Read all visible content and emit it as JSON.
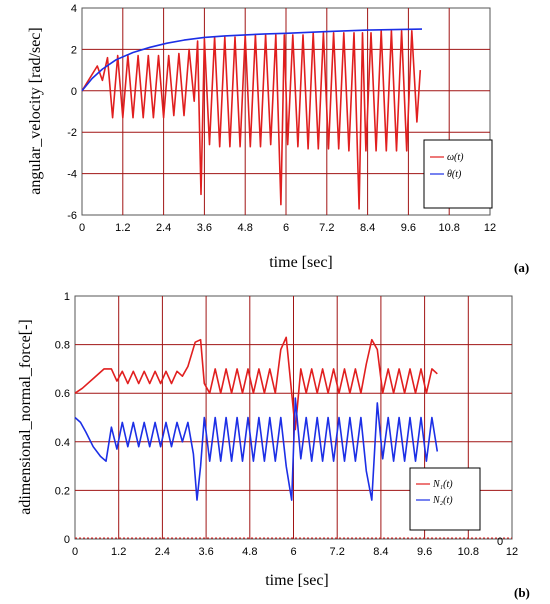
{
  "colors": {
    "red": "#e11f1f",
    "blue": "#1c2fe6",
    "grid": "#a11414",
    "frame": "#555555"
  },
  "chart_data": [
    {
      "type": "line",
      "panel_tag": "(a)",
      "xlabel": "time [sec]",
      "ylabel": "angular_velocity [rad/sec]",
      "xlim": [
        0,
        12
      ],
      "ylim": [
        -6,
        4
      ],
      "xticks": [
        "0",
        "1.2",
        "2.4",
        "3.6",
        "4.8",
        "6",
        "7.2",
        "8.4",
        "9.6",
        "10.8",
        "12"
      ],
      "yticks": [
        "4",
        "2",
        "0",
        "-2",
        "-4",
        "-6"
      ],
      "grid": true,
      "legend_position": "right",
      "series": [
        {
          "name": "ω(t)",
          "color": "#e11f1f",
          "x": [
            0,
            0.45,
            0.6,
            0.75,
            0.9,
            1.05,
            1.2,
            1.35,
            1.5,
            1.65,
            1.8,
            1.95,
            2.1,
            2.25,
            2.4,
            2.55,
            2.7,
            2.85,
            3.0,
            3.15,
            3.3,
            3.4,
            3.5,
            3.6,
            3.75,
            3.9,
            4.05,
            4.2,
            4.35,
            4.5,
            4.65,
            4.8,
            4.95,
            5.1,
            5.25,
            5.4,
            5.55,
            5.7,
            5.85,
            5.95,
            6.05,
            6.2,
            6.35,
            6.5,
            6.65,
            6.8,
            6.95,
            7.1,
            7.25,
            7.4,
            7.55,
            7.7,
            7.85,
            8.0,
            8.15,
            8.25,
            8.35,
            8.5,
            8.65,
            8.8,
            8.95,
            9.1,
            9.25,
            9.4,
            9.55,
            9.7,
            9.85,
            9.95
          ],
          "y": [
            0,
            1.2,
            0.5,
            1.6,
            -1.3,
            1.7,
            -1.3,
            1.7,
            -1.3,
            1.7,
            -1.3,
            1.7,
            -1.3,
            1.7,
            -1.3,
            1.7,
            -1.2,
            1.8,
            -1.2,
            2.0,
            -0.5,
            2.4,
            -5.0,
            2.5,
            -2.6,
            2.6,
            -2.7,
            2.6,
            -2.7,
            2.6,
            -2.7,
            2.7,
            -2.7,
            2.7,
            -2.7,
            2.7,
            -2.6,
            2.7,
            -5.5,
            2.7,
            -2.6,
            2.7,
            -2.7,
            2.7,
            -2.8,
            2.8,
            -2.8,
            2.8,
            -2.8,
            2.8,
            -2.8,
            2.8,
            -2.9,
            2.8,
            -5.7,
            2.8,
            -2.9,
            2.8,
            -2.9,
            2.9,
            -2.9,
            2.9,
            -2.9,
            2.9,
            -2.9,
            2.9,
            -1.5,
            1.0
          ]
        },
        {
          "name": "θ(t)",
          "color": "#1c2fe6",
          "x": [
            0,
            0.3,
            0.6,
            1.0,
            1.5,
            2.0,
            2.5,
            3.0,
            3.6,
            4.2,
            4.8,
            5.4,
            6.0,
            6.6,
            7.2,
            7.8,
            8.4,
            9.0,
            9.6,
            10.0
          ],
          "y": [
            0,
            0.6,
            1.05,
            1.5,
            1.85,
            2.1,
            2.3,
            2.45,
            2.58,
            2.65,
            2.7,
            2.75,
            2.78,
            2.82,
            2.86,
            2.9,
            2.93,
            2.95,
            2.97,
            2.98
          ]
        }
      ]
    },
    {
      "type": "line",
      "panel_tag": "(b)",
      "xlabel": "time [sec]",
      "ylabel": "adimensional_normal_force[-]",
      "xlim": [
        0,
        12
      ],
      "ylim": [
        0,
        1
      ],
      "xticks": [
        "0",
        "1.2",
        "2.4",
        "3.6",
        "4.8",
        "6",
        "7.2",
        "8.4",
        "9.6",
        "10.8",
        "12"
      ],
      "yticks": [
        "1",
        "0.8",
        "0.6",
        "0.4",
        "0.2",
        "0"
      ],
      "x_end_annotation": "0",
      "grid": true,
      "legend_position": "right",
      "series": [
        {
          "name": "N₁(t)",
          "color": "#e11f1f",
          "x": [
            0,
            0.2,
            0.5,
            0.8,
            1.0,
            1.15,
            1.3,
            1.45,
            1.6,
            1.75,
            1.9,
            2.05,
            2.2,
            2.35,
            2.5,
            2.65,
            2.8,
            2.95,
            3.1,
            3.3,
            3.45,
            3.55,
            3.7,
            3.85,
            4.0,
            4.15,
            4.3,
            4.45,
            4.6,
            4.75,
            4.9,
            5.05,
            5.2,
            5.35,
            5.5,
            5.65,
            5.8,
            5.95,
            6.05,
            6.2,
            6.35,
            6.5,
            6.65,
            6.8,
            6.95,
            7.1,
            7.25,
            7.4,
            7.55,
            7.7,
            7.85,
            8.0,
            8.15,
            8.3,
            8.45,
            8.6,
            8.75,
            8.9,
            9.05,
            9.2,
            9.35,
            9.5,
            9.65,
            9.8,
            9.95
          ],
          "y": [
            0.6,
            0.62,
            0.66,
            0.7,
            0.7,
            0.65,
            0.69,
            0.64,
            0.69,
            0.64,
            0.69,
            0.64,
            0.69,
            0.64,
            0.69,
            0.64,
            0.69,
            0.67,
            0.71,
            0.81,
            0.82,
            0.64,
            0.6,
            0.7,
            0.6,
            0.7,
            0.6,
            0.7,
            0.6,
            0.7,
            0.6,
            0.7,
            0.6,
            0.7,
            0.6,
            0.78,
            0.83,
            0.6,
            0.45,
            0.7,
            0.6,
            0.7,
            0.6,
            0.7,
            0.6,
            0.7,
            0.6,
            0.7,
            0.6,
            0.7,
            0.6,
            0.72,
            0.82,
            0.78,
            0.6,
            0.7,
            0.6,
            0.7,
            0.6,
            0.7,
            0.6,
            0.7,
            0.6,
            0.7,
            0.68
          ]
        },
        {
          "name": "N₂(t)",
          "color": "#1c2fe6",
          "x": [
            0,
            0.15,
            0.3,
            0.5,
            0.7,
            0.85,
            1.0,
            1.15,
            1.3,
            1.45,
            1.6,
            1.75,
            1.9,
            2.05,
            2.2,
            2.35,
            2.5,
            2.65,
            2.8,
            2.95,
            3.1,
            3.25,
            3.35,
            3.45,
            3.55,
            3.7,
            3.85,
            4.0,
            4.15,
            4.3,
            4.45,
            4.6,
            4.75,
            4.9,
            5.05,
            5.2,
            5.35,
            5.5,
            5.65,
            5.8,
            5.95,
            6.05,
            6.2,
            6.35,
            6.5,
            6.65,
            6.8,
            6.95,
            7.1,
            7.25,
            7.4,
            7.55,
            7.7,
            7.85,
            8.0,
            8.15,
            8.3,
            8.45,
            8.6,
            8.75,
            8.9,
            9.05,
            9.2,
            9.35,
            9.5,
            9.65,
            9.8,
            9.95
          ],
          "y": [
            0.5,
            0.48,
            0.44,
            0.38,
            0.34,
            0.32,
            0.46,
            0.37,
            0.48,
            0.38,
            0.48,
            0.38,
            0.48,
            0.38,
            0.48,
            0.38,
            0.48,
            0.38,
            0.48,
            0.4,
            0.48,
            0.35,
            0.16,
            0.3,
            0.5,
            0.32,
            0.5,
            0.32,
            0.5,
            0.32,
            0.5,
            0.32,
            0.5,
            0.32,
            0.5,
            0.32,
            0.5,
            0.32,
            0.5,
            0.3,
            0.16,
            0.58,
            0.33,
            0.5,
            0.32,
            0.5,
            0.32,
            0.5,
            0.32,
            0.5,
            0.32,
            0.5,
            0.32,
            0.5,
            0.28,
            0.16,
            0.56,
            0.33,
            0.5,
            0.32,
            0.5,
            0.32,
            0.5,
            0.32,
            0.5,
            0.32,
            0.5,
            0.36
          ]
        }
      ]
    }
  ]
}
